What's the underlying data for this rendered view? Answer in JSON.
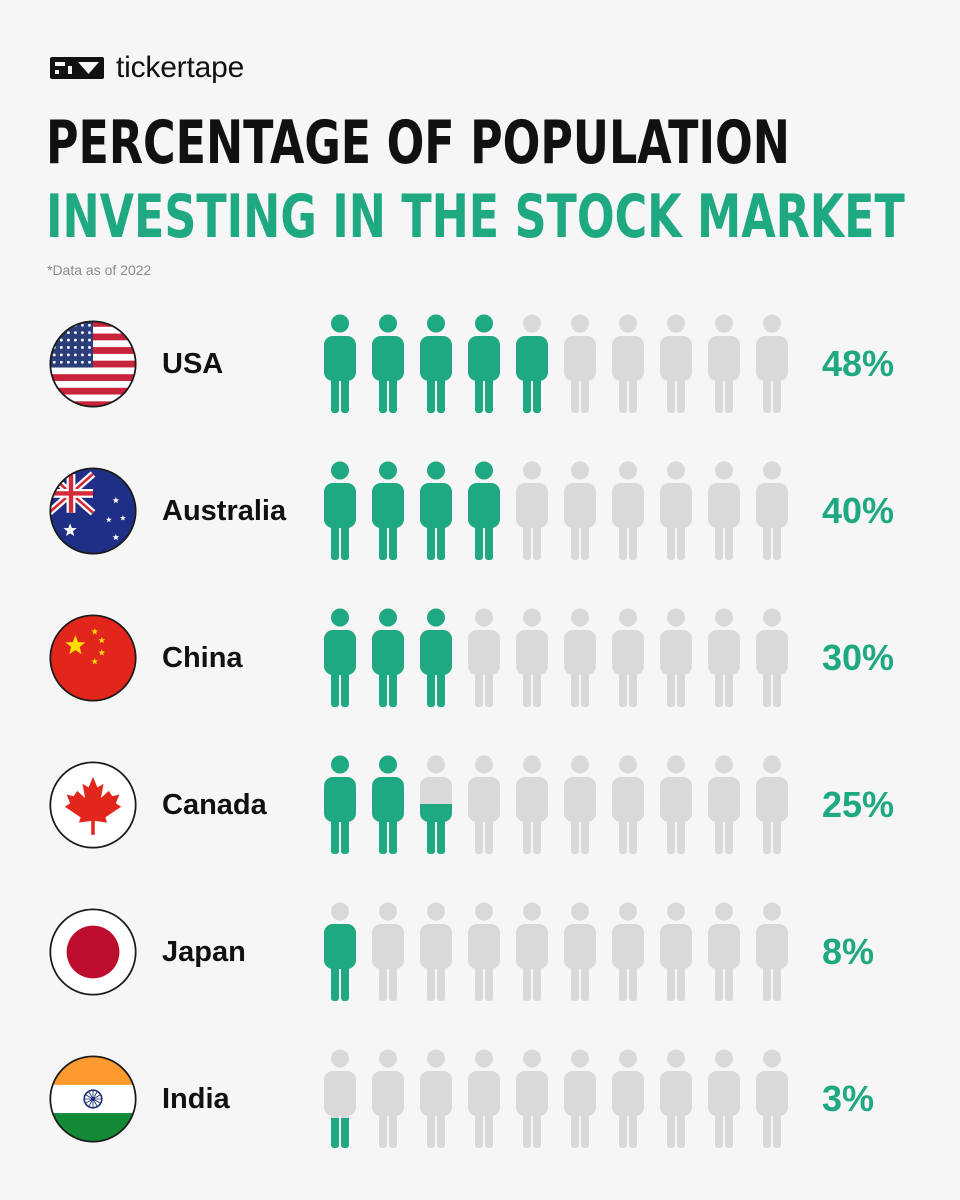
{
  "brand": {
    "name": "tickertape",
    "logo": "tickertape-logo-icon"
  },
  "title": {
    "line1": "PERCENTAGE OF POPULATION",
    "line2": "INVESTING IN THE STOCK MARKET"
  },
  "footnote": "*Data as of 2022",
  "colors": {
    "filled": "#1fa982",
    "empty": "#d9d9d9",
    "text": "#111111",
    "background": "#f6f6f6"
  },
  "chart_data": {
    "type": "bar",
    "title": "PERCENTAGE OF POPULATION INVESTING IN THE STOCK MARKET",
    "subtitle": "*Data as of 2022",
    "categories": [
      "USA",
      "Australia",
      "China",
      "Canada",
      "Japan",
      "India"
    ],
    "values": [
      48,
      40,
      30,
      25,
      8,
      3
    ],
    "labels": [
      "48%",
      "40%",
      "30%",
      "25%",
      "8%",
      "3%"
    ],
    "flags": [
      "usa-flag-icon",
      "australia-flag-icon",
      "china-flag-icon",
      "canada-flag-icon",
      "japan-flag-icon",
      "india-flag-icon"
    ],
    "icons_per_row": 10,
    "percent_per_icon": 10
  }
}
